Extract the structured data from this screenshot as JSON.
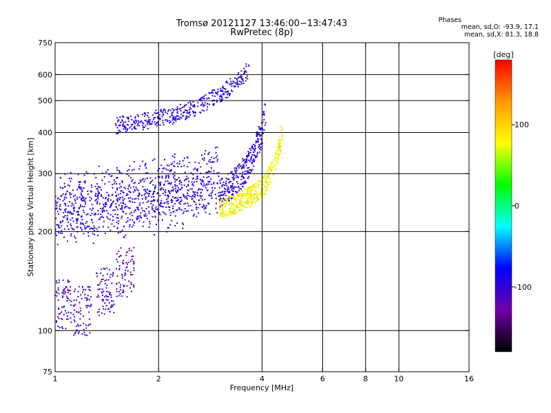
{
  "chart_data": {
    "type": "scatter",
    "title": "Tromsø 20121127 13:46:00−13:47:43",
    "subtitle": "RwPretec (8p)",
    "xlabel": "Frequency [MHz]",
    "ylabel": "Stationary phase Virtual Height [km]",
    "x_scale": "log",
    "y_scale": "log",
    "xlim": [
      1,
      16
    ],
    "ylim": [
      75,
      750
    ],
    "x_ticks": [
      1,
      2,
      4,
      6,
      8,
      10,
      16
    ],
    "y_ticks": [
      75,
      100,
      200,
      300,
      400,
      500,
      600,
      750
    ],
    "x_gridlines": [
      2,
      4,
      6,
      8,
      10
    ],
    "y_gridlines": [
      100,
      200,
      300,
      400,
      500,
      600
    ],
    "grid": true,
    "stats_header": "Phases",
    "stats_line_1": "mean, sd,O: -93.9, 17.1",
    "stats_line_2": "mean, sd,X: 81.3, 18.8",
    "colorbar": {
      "label": "[deg]",
      "range": [
        -180,
        180
      ],
      "ticks": [
        100,
        0,
        -100
      ],
      "tick_labels": [
        "100",
        "0",
        "-100"
      ],
      "colors": [
        "#000000",
        "#7000a8",
        "#0000ff",
        "#00ffff",
        "#00ff00",
        "#ffff00",
        "#ff9900",
        "#ff0000"
      ]
    },
    "point_color": "#3a3aff",
    "series": [
      {
        "name": "O",
        "mean_phase": -93.9,
        "sd_phase": 17.1,
        "trace": [
          [
            1.0,
            205
          ],
          [
            1.2,
            210
          ],
          [
            1.5,
            218
          ],
          [
            1.8,
            225
          ],
          [
            2.2,
            232
          ],
          [
            2.6,
            242
          ],
          [
            3.0,
            258
          ],
          [
            3.3,
            280
          ],
          [
            3.6,
            310
          ],
          [
            3.8,
            350
          ],
          [
            4.0,
            400
          ],
          [
            4.1,
            460
          ]
        ]
      },
      {
        "name": "X",
        "mean_phase": 81.3,
        "sd_phase": 18.8,
        "trace": [
          [
            3.0,
            232
          ],
          [
            3.4,
            245
          ],
          [
            3.8,
            260
          ],
          [
            4.1,
            280
          ],
          [
            4.3,
            310
          ],
          [
            4.5,
            360
          ],
          [
            4.6,
            420
          ]
        ]
      }
    ],
    "f_layer_trace": [
      [
        1.5,
        420
      ],
      [
        1.8,
        432
      ],
      [
        2.2,
        450
      ],
      [
        2.6,
        480
      ],
      [
        3.0,
        520
      ],
      [
        3.4,
        570
      ],
      [
        3.7,
        630
      ]
    ],
    "e_layer_spots": [
      [
        1.05,
        120
      ],
      [
        1.2,
        115
      ],
      [
        1.4,
        130
      ],
      [
        1.6,
        150
      ]
    ]
  }
}
